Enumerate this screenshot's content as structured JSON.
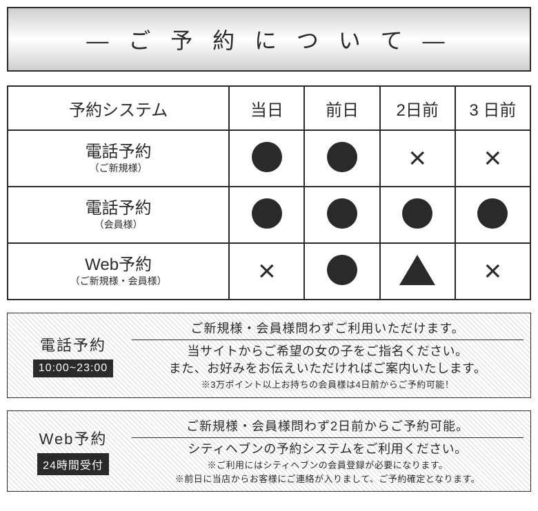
{
  "banner": {
    "title": "— ご 予 約 に つ い て —"
  },
  "table": {
    "headers": [
      "予約システム",
      "当日",
      "前日",
      "2日前",
      "3 日前"
    ],
    "rows": [
      {
        "label": "電話予約",
        "sub": "（ご新規様）",
        "marks": [
          "circle",
          "circle",
          "cross",
          "cross"
        ]
      },
      {
        "label": "電話予約",
        "sub": "（会員様）",
        "marks": [
          "circle",
          "circle",
          "circle",
          "circle"
        ]
      },
      {
        "label": "Web予約",
        "sub": "（ご新規様・会員様）",
        "marks": [
          "cross",
          "circle",
          "triangle",
          "cross"
        ]
      }
    ]
  },
  "cards": [
    {
      "title": "電話予約",
      "badge": "10:00~23:00",
      "headline": "ご新規様・会員様問わずご利用いただけます。",
      "lines": [
        "当サイトからご希望の女の子をご指名ください。",
        "また、お好みをお伝えいただければご案内いたします。"
      ],
      "notes": [
        "※3万ポイント以上お持ちの会員様は4日前からご予約可能！"
      ]
    },
    {
      "title": "Web予約",
      "badge": "24時間受付",
      "headline": "ご新規様・会員様問わず2日前からご予約可能。",
      "lines": [
        "シティヘブンの予約システムをご利用ください。"
      ],
      "notes": [
        "※ご利用にはシティヘブンの会員登録が必要になります。",
        "※前日に当店からお客様にご連絡が入りまして、ご予約確定となります。"
      ]
    }
  ]
}
